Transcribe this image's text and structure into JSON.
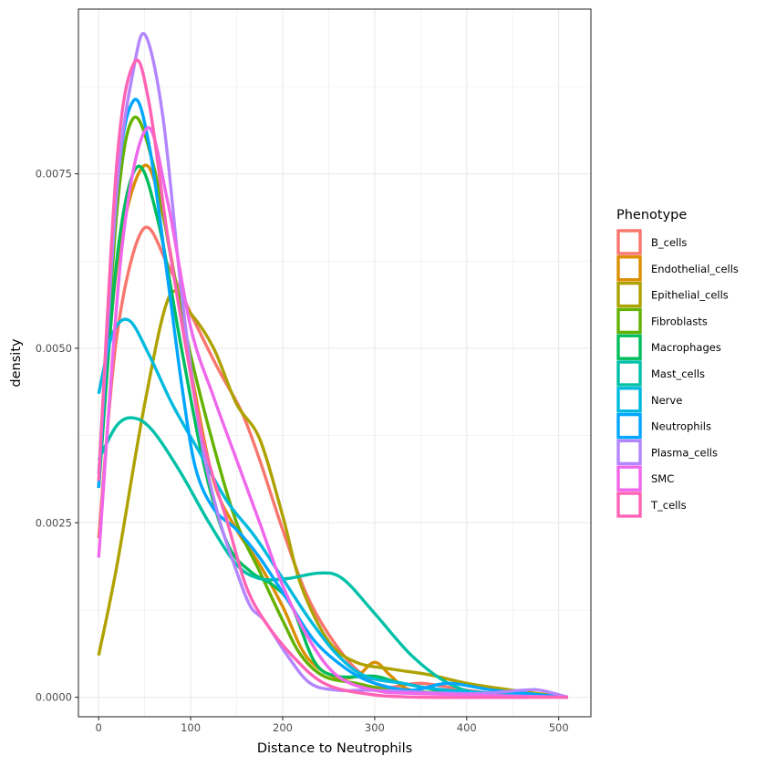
{
  "chart_data": {
    "type": "line",
    "xlabel": "Distance to Neutrophils",
    "ylabel": "density",
    "xlim": [
      -22,
      535
    ],
    "ylim": [
      -0.00028,
      0.00986
    ],
    "x_ticks": [
      0,
      100,
      200,
      300,
      400,
      500
    ],
    "x_tick_labels": [
      "0",
      "100",
      "200",
      "300",
      "400",
      "500"
    ],
    "y_ticks": [
      0,
      0.0025,
      0.005,
      0.0075
    ],
    "y_tick_labels": [
      "0.0000",
      "0.0025",
      "0.0050",
      "0.0075"
    ],
    "grid": true,
    "legend": {
      "title": "Phenotype",
      "position": "right"
    },
    "series": [
      {
        "name": "B_cells",
        "color": "#F8766D",
        "points": [
          [
            0,
            0.00228
          ],
          [
            20,
            0.0052
          ],
          [
            48,
            0.0067
          ],
          [
            75,
            0.0062
          ],
          [
            100,
            0.0055
          ],
          [
            130,
            0.0047
          ],
          [
            155,
            0.0041
          ],
          [
            175,
            0.0034
          ],
          [
            200,
            0.0024
          ],
          [
            225,
            0.0015
          ],
          [
            250,
            0.0009
          ],
          [
            280,
            0.0004
          ],
          [
            310,
            0.00015
          ],
          [
            350,
            0.0002
          ],
          [
            400,
            0.0001
          ],
          [
            450,
            3e-05
          ],
          [
            510,
            0.0
          ]
        ]
      },
      {
        "name": "Endothelial_cells",
        "color": "#DB8E00",
        "points": [
          [
            0,
            0.003
          ],
          [
            20,
            0.0062
          ],
          [
            48,
            0.0076
          ],
          [
            70,
            0.0069
          ],
          [
            100,
            0.0047
          ],
          [
            125,
            0.0031
          ],
          [
            150,
            0.0024
          ],
          [
            175,
            0.0019
          ],
          [
            200,
            0.0013
          ],
          [
            225,
            0.0006
          ],
          [
            255,
            0.0003
          ],
          [
            280,
            0.0003
          ],
          [
            300,
            0.0005
          ],
          [
            318,
            0.0003
          ],
          [
            340,
            0.0001
          ],
          [
            400,
            5e-05
          ],
          [
            510,
            0.0
          ]
        ]
      },
      {
        "name": "Epithelial_cells",
        "color": "#AEA200",
        "points": [
          [
            0,
            0.0006
          ],
          [
            20,
            0.0019
          ],
          [
            50,
            0.0042
          ],
          [
            77,
            0.00575
          ],
          [
            100,
            0.0055
          ],
          [
            125,
            0.005
          ],
          [
            150,
            0.0042
          ],
          [
            175,
            0.0037
          ],
          [
            200,
            0.0026
          ],
          [
            220,
            0.0016
          ],
          [
            250,
            0.0008
          ],
          [
            280,
            0.0005
          ],
          [
            320,
            0.0004
          ],
          [
            360,
            0.00032
          ],
          [
            400,
            0.0002
          ],
          [
            450,
            0.0001
          ],
          [
            510,
            0.0
          ]
        ]
      },
      {
        "name": "Fibroblasts",
        "color": "#64B200",
        "points": [
          [
            0,
            0.003
          ],
          [
            20,
            0.007
          ],
          [
            38,
            0.0083
          ],
          [
            60,
            0.0076
          ],
          [
            80,
            0.0062
          ],
          [
            100,
            0.0049
          ],
          [
            125,
            0.0036
          ],
          [
            150,
            0.0025
          ],
          [
            175,
            0.0018
          ],
          [
            200,
            0.0011
          ],
          [
            220,
            0.0006
          ],
          [
            245,
            0.0003
          ],
          [
            280,
            0.0002
          ],
          [
            320,
            0.0001
          ],
          [
            400,
            5e-05
          ],
          [
            510,
            0.0
          ]
        ]
      },
      {
        "name": "Macrophages",
        "color": "#00BD5C",
        "points": [
          [
            0,
            0.003
          ],
          [
            20,
            0.0063
          ],
          [
            42,
            0.0076
          ],
          [
            65,
            0.0068
          ],
          [
            90,
            0.005
          ],
          [
            115,
            0.0033
          ],
          [
            140,
            0.0022
          ],
          [
            165,
            0.0018
          ],
          [
            190,
            0.0016
          ],
          [
            210,
            0.0013
          ],
          [
            235,
            0.0005
          ],
          [
            260,
            0.0003
          ],
          [
            300,
            0.0003
          ],
          [
            330,
            0.0002
          ],
          [
            400,
            5e-05
          ],
          [
            510,
            0.0
          ]
        ]
      },
      {
        "name": "Mast_cells",
        "color": "#00C1A7",
        "points": [
          [
            0,
            0.0034
          ],
          [
            20,
            0.0039
          ],
          [
            39,
            0.004
          ],
          [
            60,
            0.0038
          ],
          [
            90,
            0.0032
          ],
          [
            120,
            0.0025
          ],
          [
            150,
            0.0019
          ],
          [
            175,
            0.0017
          ],
          [
            205,
            0.0017
          ],
          [
            240,
            0.00178
          ],
          [
            265,
            0.0017
          ],
          [
            300,
            0.0012
          ],
          [
            340,
            0.0006
          ],
          [
            380,
            0.0002
          ],
          [
            420,
            5e-05
          ],
          [
            510,
            0.0
          ]
        ]
      },
      {
        "name": "Nerve",
        "color": "#00BADE",
        "points": [
          [
            0,
            0.00435
          ],
          [
            15,
            0.0052
          ],
          [
            33,
            0.0054
          ],
          [
            55,
            0.0049
          ],
          [
            80,
            0.0042
          ],
          [
            110,
            0.0035
          ],
          [
            140,
            0.0028
          ],
          [
            170,
            0.0023
          ],
          [
            200,
            0.0017
          ],
          [
            230,
            0.0011
          ],
          [
            260,
            0.0006
          ],
          [
            290,
            0.0003
          ],
          [
            330,
            0.0002
          ],
          [
            380,
            0.0001
          ],
          [
            510,
            0.0
          ]
        ]
      },
      {
        "name": "Neutrophils",
        "color": "#00A6FF",
        "points": [
          [
            0,
            0.003
          ],
          [
            20,
            0.0073
          ],
          [
            38,
            0.00855
          ],
          [
            55,
            0.0079
          ],
          [
            75,
            0.006
          ],
          [
            90,
            0.0045
          ],
          [
            105,
            0.0033
          ],
          [
            125,
            0.0027
          ],
          [
            150,
            0.0024
          ],
          [
            175,
            0.002
          ],
          [
            205,
            0.0014
          ],
          [
            235,
            0.0008
          ],
          [
            270,
            0.0004
          ],
          [
            300,
            0.0002
          ],
          [
            340,
            0.0001
          ],
          [
            380,
            0.0002
          ],
          [
            430,
            0.0001
          ],
          [
            510,
            0.0
          ]
        ]
      },
      {
        "name": "Plasma_cells",
        "color": "#B385FF",
        "points": [
          [
            0,
            0.0032
          ],
          [
            20,
            0.0073
          ],
          [
            38,
            0.009
          ],
          [
            51,
            0.00948
          ],
          [
            70,
            0.0083
          ],
          [
            90,
            0.0058
          ],
          [
            110,
            0.0038
          ],
          [
            130,
            0.0026
          ],
          [
            150,
            0.0018
          ],
          [
            165,
            0.0013
          ],
          [
            180,
            0.0011
          ],
          [
            205,
            0.0006
          ],
          [
            230,
            0.0002
          ],
          [
            260,
            0.0001
          ],
          [
            300,
            0.0001
          ],
          [
            400,
            5e-05
          ],
          [
            460,
            0.0001
          ],
          [
            480,
            0.0001
          ],
          [
            510,
            0.0
          ]
        ]
      },
      {
        "name": "SMC",
        "color": "#EF67EB",
        "points": [
          [
            0,
            0.002
          ],
          [
            25,
            0.0064
          ],
          [
            52,
            0.00815
          ],
          [
            75,
            0.0071
          ],
          [
            100,
            0.0053
          ],
          [
            125,
            0.0043
          ],
          [
            150,
            0.0034
          ],
          [
            175,
            0.0025
          ],
          [
            200,
            0.0016
          ],
          [
            230,
            0.0008
          ],
          [
            260,
            0.0003
          ],
          [
            300,
            0.0001
          ],
          [
            350,
            5e-05
          ],
          [
            510,
            0.0
          ]
        ]
      },
      {
        "name": "T_cells",
        "color": "#FF63B6",
        "points": [
          [
            0,
            0.0031
          ],
          [
            20,
            0.0077
          ],
          [
            39,
            0.0091
          ],
          [
            55,
            0.0085
          ],
          [
            75,
            0.0066
          ],
          [
            95,
            0.005
          ],
          [
            115,
            0.0036
          ],
          [
            140,
            0.0025
          ],
          [
            160,
            0.0016
          ],
          [
            180,
            0.0011
          ],
          [
            210,
            0.0006
          ],
          [
            245,
            0.0002
          ],
          [
            290,
            5e-05
          ],
          [
            350,
            0.0
          ],
          [
            510,
            0.0
          ]
        ]
      }
    ]
  }
}
